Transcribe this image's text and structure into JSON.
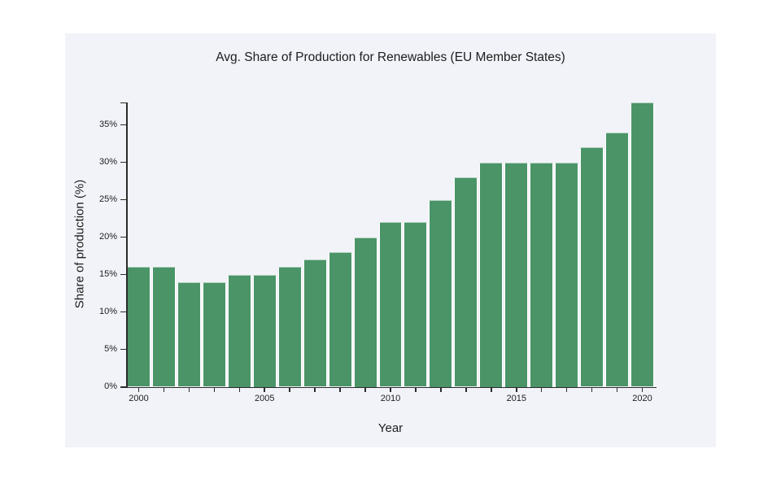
{
  "chart_data": {
    "type": "bar",
    "title": "Avg. Share of Production for Renewables (EU Member States)",
    "xlabel": "Year",
    "ylabel": "Share of production (%)",
    "categories": [
      2000,
      2001,
      2002,
      2003,
      2004,
      2005,
      2006,
      2007,
      2008,
      2009,
      2010,
      2011,
      2012,
      2013,
      2014,
      2015,
      2016,
      2017,
      2018,
      2019,
      2020
    ],
    "values": [
      16,
      16,
      14,
      14,
      15,
      15,
      16,
      17,
      18,
      20,
      22,
      22,
      25,
      28,
      30,
      30,
      30,
      30,
      32,
      34,
      38
    ],
    "unit": "%",
    "ylim": [
      0,
      38
    ],
    "yticks": [
      0,
      5,
      10,
      15,
      20,
      25,
      30,
      35
    ],
    "ytick_suffix": "%",
    "xticks_labeled": [
      2000,
      2005,
      2010,
      2015,
      2020
    ],
    "grid": false,
    "legend": null,
    "colors": {
      "bar": "#4a9468",
      "bar_edge": "#ffffff",
      "axis": "#2b2b2b",
      "text": "#1d1d1f",
      "panel_background": "#f2f3f8",
      "page_background": "#ffffff"
    }
  }
}
